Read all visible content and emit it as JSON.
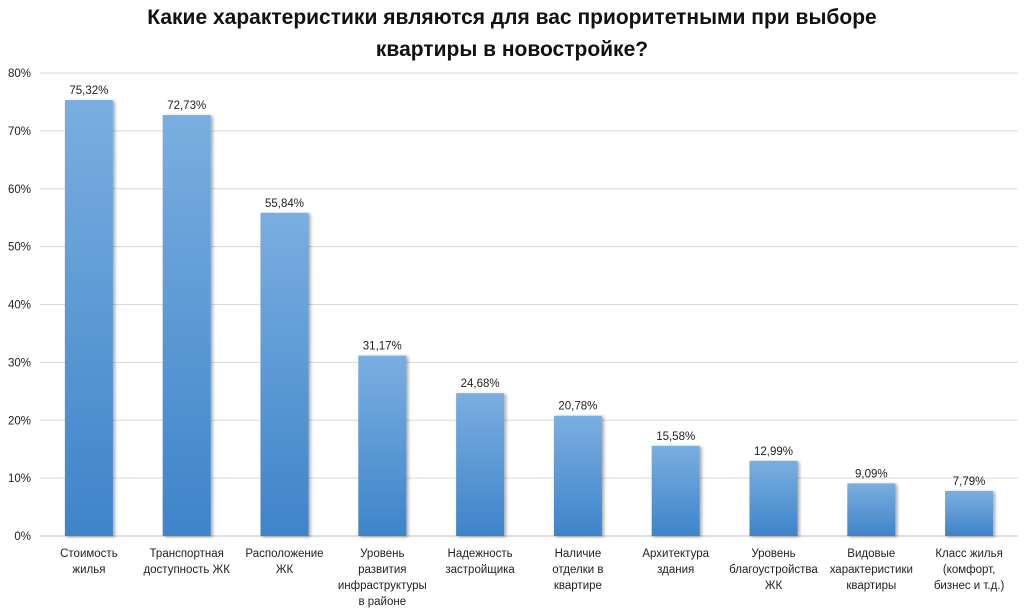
{
  "chart_data": {
    "type": "bar",
    "title_lines": [
      "Какие характеристики являются для вас приоритетными при выборе",
      "квартиры в новостройке?"
    ],
    "categories": [
      [
        "Стоимость",
        "жилья"
      ],
      [
        "Транспортная",
        "доступность ЖК"
      ],
      [
        "Расположение",
        "ЖК"
      ],
      [
        "Уровень",
        "развития",
        "инфраструктуры",
        "в районе"
      ],
      [
        "Надежность",
        "застройщика"
      ],
      [
        "Наличие",
        "отделки в",
        "квартире"
      ],
      [
        "Архитектура",
        "здания"
      ],
      [
        "Уровень",
        "благоустройства",
        "ЖК"
      ],
      [
        "Видовые",
        "характеристики",
        "квартиры"
      ],
      [
        "Класс жилья",
        "(комфорт,",
        "бизнес и т.д.)"
      ]
    ],
    "values": [
      75.32,
      72.73,
      55.84,
      31.17,
      24.68,
      20.78,
      15.58,
      12.99,
      9.09,
      7.79
    ],
    "value_labels": [
      "75,32%",
      "72,73%",
      "55,84%",
      "31,17%",
      "24,68%",
      "20,78%",
      "15,58%",
      "12,99%",
      "9,09%",
      "7,79%"
    ],
    "ylim": [
      0,
      80
    ],
    "yticks": [
      0,
      10,
      20,
      30,
      40,
      50,
      60,
      70,
      80
    ],
    "ytick_labels": [
      "0%",
      "10%",
      "20%",
      "30%",
      "40%",
      "50%",
      "60%",
      "70%",
      "80%"
    ],
    "grid": true,
    "legend": "none",
    "colors": {
      "bar_top": "#7aaee0",
      "bar_bottom": "#3e84c9",
      "grid": "#d9d9d9",
      "axis": "#bfbfbf"
    }
  }
}
